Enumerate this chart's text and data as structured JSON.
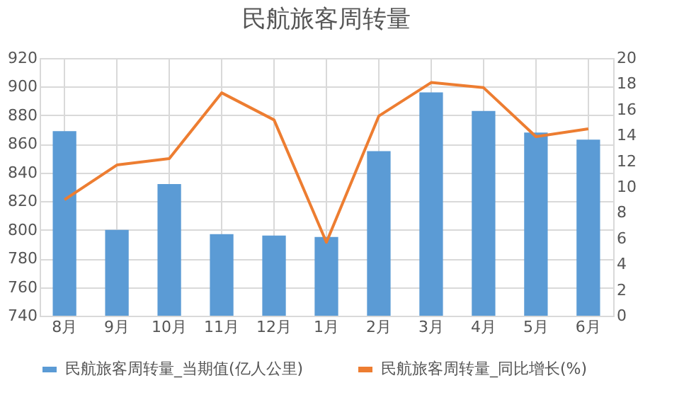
{
  "chart_data": {
    "type": "bar",
    "title": "民航旅客周转量",
    "categories": [
      "8月",
      "9月",
      "10月",
      "11月",
      "12月",
      "1月",
      "2月",
      "3月",
      "4月",
      "5月",
      "6月"
    ],
    "series": [
      {
        "name": "民航旅客周转量_当期值(亿人公里)",
        "color": "#5b9bd5",
        "values": [
          869,
          800,
          832,
          797,
          796,
          795,
          855,
          896,
          883,
          868,
          863
        ]
      },
      {
        "name": "民航旅客周转量_同比增长(%)",
        "type": "line",
        "axis": "y2",
        "color": "#ed7d31",
        "values": [
          9.0,
          11.7,
          12.2,
          17.3,
          15.2,
          5.7,
          15.5,
          18.1,
          17.7,
          13.9,
          14.5
        ]
      }
    ],
    "ylim": [
      740,
      920
    ],
    "yticks": [
      740,
      760,
      780,
      800,
      820,
      840,
      860,
      880,
      900,
      920
    ],
    "y2lim": [
      0,
      20
    ],
    "y2ticks": [
      0,
      2,
      4,
      6,
      8,
      10,
      12,
      14,
      16,
      18,
      20
    ],
    "grid": true,
    "legend": "bottom"
  }
}
